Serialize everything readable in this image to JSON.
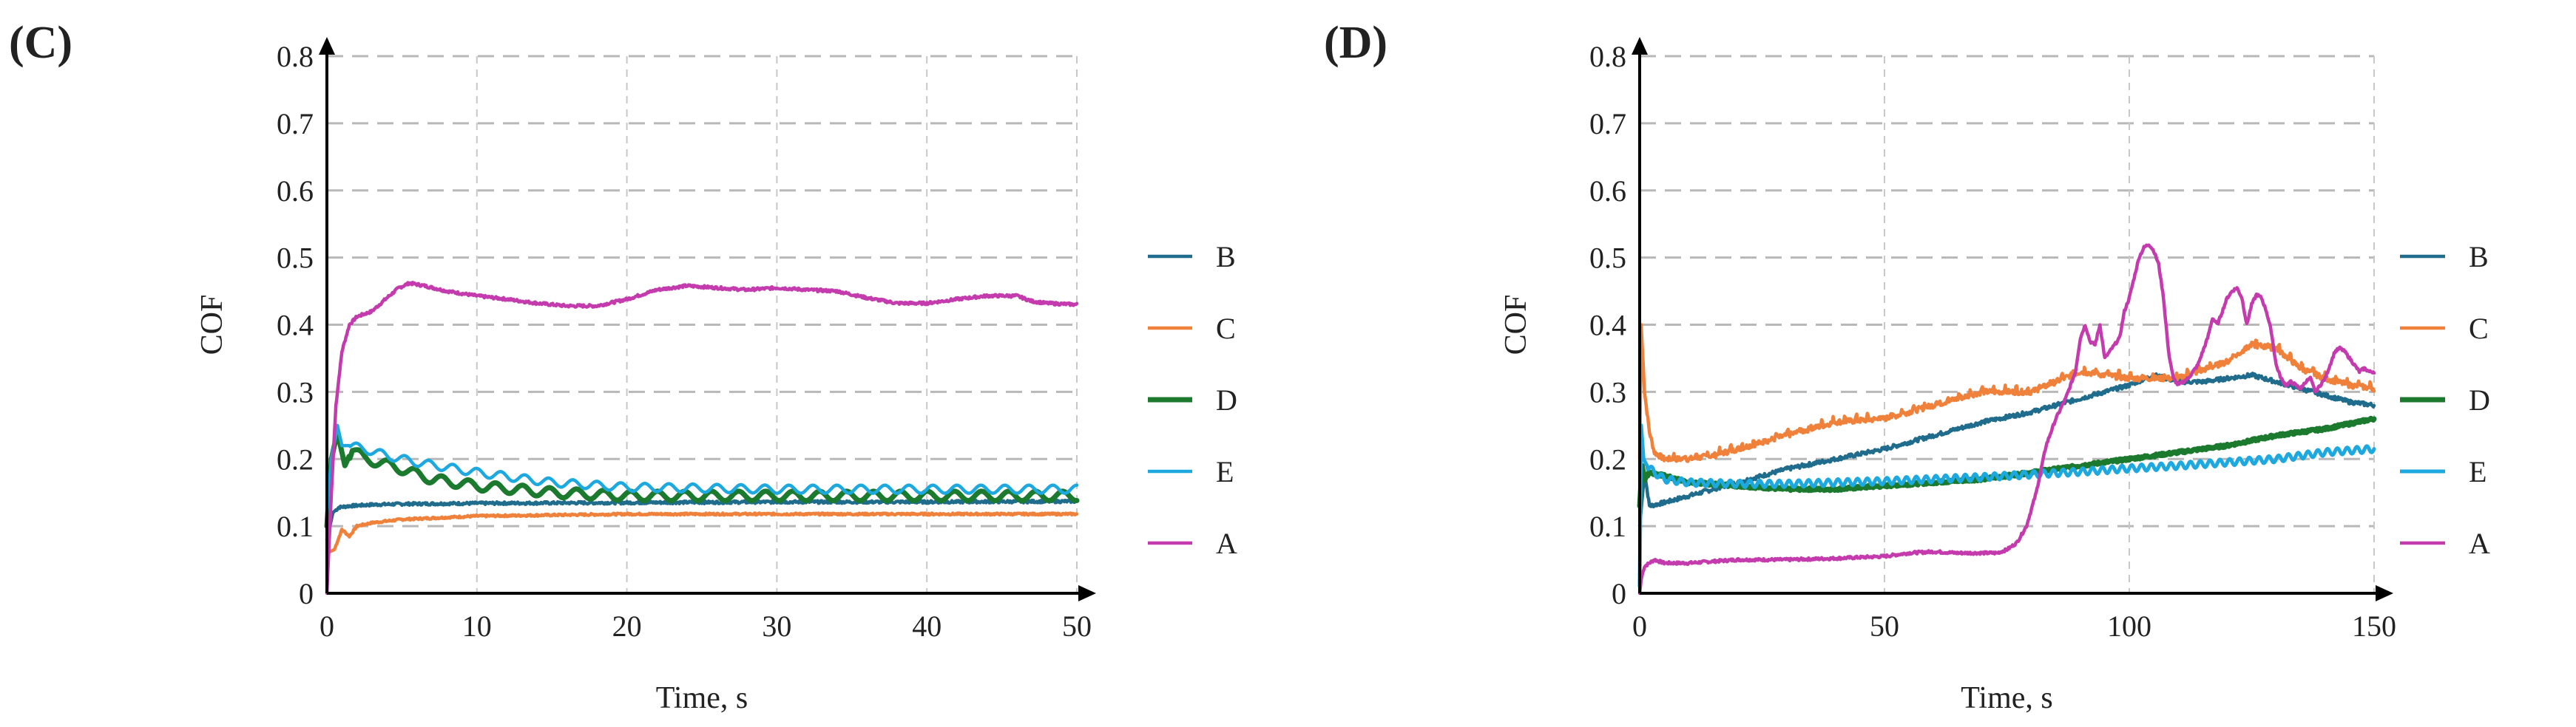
{
  "chart_data": [
    {
      "panel_label": "(C)",
      "type": "line",
      "xlabel": "Time, s",
      "ylabel": "COF",
      "xlim": [
        0,
        50
      ],
      "ylim": [
        0,
        0.8
      ],
      "x_ticks": [
        0,
        10,
        20,
        30,
        40,
        50
      ],
      "x_tick_labels": [
        "0",
        "10",
        "20",
        "30",
        "40",
        "50"
      ],
      "y_ticks": [
        0,
        0.1,
        0.2,
        0.3,
        0.4,
        0.5,
        0.6,
        0.7,
        0.8
      ],
      "y_tick_labels": [
        "0",
        "0.1",
        "0.2",
        "0.3",
        "0.4",
        "0.5",
        "0.6",
        "0.7",
        "0.8"
      ],
      "grid": true,
      "legend_position": "right",
      "legend": [
        "B",
        "C",
        "D",
        "E",
        "A"
      ],
      "series": [
        {
          "name": "B",
          "color": "#1F6C8C",
          "width": 4.5,
          "noise": 0.002,
          "x": [
            0,
            0.4,
            0.8,
            1.5,
            3,
            5,
            10,
            20,
            30,
            40,
            50
          ],
          "y": [
            0.08,
            0.12,
            0.128,
            0.13,
            0.132,
            0.133,
            0.134,
            0.135,
            0.136,
            0.136,
            0.137
          ]
        },
        {
          "name": "C",
          "color": "#F0813B",
          "width": 4.5,
          "noise": 0.0015,
          "x": [
            0,
            0.5,
            1,
            1.5,
            2,
            3,
            5,
            10,
            20,
            30,
            40,
            50
          ],
          "y": [
            0.06,
            0.065,
            0.095,
            0.085,
            0.1,
            0.105,
            0.11,
            0.115,
            0.118,
            0.118,
            0.118,
            0.118
          ]
        },
        {
          "name": "D",
          "color": "#1C7A2E",
          "width": 7,
          "osc": 0.007,
          "period": 1.8,
          "x": [
            0,
            0.3,
            0.7,
            1.2,
            1.7,
            2.5,
            3.5,
            5,
            7,
            10,
            15,
            20,
            30,
            40,
            50
          ],
          "y": [
            0.1,
            0.2,
            0.24,
            0.19,
            0.215,
            0.2,
            0.195,
            0.185,
            0.17,
            0.16,
            0.15,
            0.145,
            0.145,
            0.145,
            0.145
          ]
        },
        {
          "name": "E",
          "color": "#1DA9DF",
          "width": 4.5,
          "osc": 0.006,
          "period": 1.6,
          "x": [
            0,
            0.3,
            0.7,
            1,
            1.5,
            2.5,
            4,
            6,
            10,
            15,
            20,
            30,
            40,
            50
          ],
          "y": [
            0.12,
            0.2,
            0.25,
            0.22,
            0.22,
            0.215,
            0.205,
            0.195,
            0.18,
            0.165,
            0.158,
            0.155,
            0.155,
            0.155
          ]
        },
        {
          "name": "A",
          "color": "#C43BAE",
          "width": 4.5,
          "noise": 0.002,
          "x": [
            0,
            0.3,
            0.6,
            1,
            1.5,
            2,
            3,
            4,
            4.8,
            5.5,
            6.5,
            8,
            10,
            12,
            14,
            16,
            18,
            20,
            22,
            24,
            26,
            28,
            30,
            32,
            34,
            36,
            38,
            40,
            42,
            44,
            46,
            47,
            48,
            50
          ],
          "y": [
            0,
            0.15,
            0.28,
            0.36,
            0.4,
            0.412,
            0.42,
            0.44,
            0.455,
            0.462,
            0.458,
            0.45,
            0.443,
            0.438,
            0.432,
            0.428,
            0.428,
            0.438,
            0.452,
            0.458,
            0.455,
            0.452,
            0.455,
            0.452,
            0.45,
            0.44,
            0.432,
            0.432,
            0.438,
            0.443,
            0.443,
            0.435,
            0.432,
            0.43
          ]
        }
      ]
    },
    {
      "panel_label": "(D)",
      "type": "line",
      "xlabel": "Time, s",
      "ylabel": "COF",
      "xlim": [
        0,
        150
      ],
      "ylim": [
        0,
        0.8
      ],
      "x_ticks": [
        0,
        50,
        100,
        150
      ],
      "x_tick_labels": [
        "0",
        "50",
        "100",
        "150"
      ],
      "y_ticks": [
        0,
        0.1,
        0.2,
        0.3,
        0.4,
        0.5,
        0.6,
        0.7,
        0.8
      ],
      "y_tick_labels": [
        "0",
        "0.1",
        "0.2",
        "0.3",
        "0.4",
        "0.5",
        "0.6",
        "0.7",
        "0.8"
      ],
      "grid": true,
      "legend_position": "right",
      "legend": [
        "B",
        "C",
        "D",
        "E",
        "A"
      ],
      "series": [
        {
          "name": "B",
          "color": "#1F6C8C",
          "width": 4.5,
          "noise": 0.003,
          "x": [
            0,
            1,
            2,
            5,
            10,
            20,
            30,
            40,
            50,
            60,
            70,
            80,
            90,
            100,
            105,
            110,
            115,
            120,
            125,
            130,
            135,
            140,
            145,
            150
          ],
          "y": [
            0.1,
            0.18,
            0.13,
            0.135,
            0.145,
            0.165,
            0.185,
            0.2,
            0.215,
            0.235,
            0.255,
            0.27,
            0.29,
            0.31,
            0.325,
            0.315,
            0.315,
            0.32,
            0.325,
            0.315,
            0.305,
            0.295,
            0.285,
            0.28
          ]
        },
        {
          "name": "C",
          "color": "#F0813B",
          "width": 4.5,
          "noise": 0.004,
          "step": true,
          "x": [
            0,
            0.3,
            1,
            2,
            3,
            5,
            10,
            15,
            20,
            30,
            40,
            50,
            60,
            70,
            80,
            90,
            100,
            110,
            120,
            125,
            130,
            135,
            140,
            145,
            150
          ],
          "y": [
            0.2,
            0.4,
            0.3,
            0.24,
            0.21,
            0.2,
            0.2,
            0.205,
            0.215,
            0.235,
            0.255,
            0.26,
            0.28,
            0.3,
            0.3,
            0.33,
            0.32,
            0.32,
            0.345,
            0.37,
            0.365,
            0.335,
            0.32,
            0.31,
            0.305
          ]
        },
        {
          "name": "D",
          "color": "#1C7A2E",
          "width": 7,
          "noise": 0.002,
          "x": [
            0,
            0.5,
            1,
            2,
            5,
            10,
            20,
            30,
            40,
            50,
            60,
            70,
            80,
            90,
            100,
            110,
            120,
            130,
            140,
            150
          ],
          "y": [
            0.13,
            0.19,
            0.17,
            0.18,
            0.175,
            0.165,
            0.16,
            0.155,
            0.155,
            0.16,
            0.165,
            0.17,
            0.18,
            0.19,
            0.2,
            0.21,
            0.22,
            0.235,
            0.245,
            0.26
          ]
        },
        {
          "name": "E",
          "color": "#1DA9DF",
          "width": 5,
          "osc": 0.005,
          "period": 2,
          "x": [
            0,
            0.3,
            0.8,
            1.5,
            3,
            5,
            10,
            20,
            30,
            40,
            50,
            60,
            70,
            80,
            90,
            100,
            110,
            120,
            130,
            140,
            150
          ],
          "y": [
            0.01,
            0.25,
            0.2,
            0.19,
            0.18,
            0.17,
            0.165,
            0.163,
            0.163,
            0.165,
            0.167,
            0.17,
            0.173,
            0.177,
            0.181,
            0.186,
            0.19,
            0.195,
            0.2,
            0.21,
            0.215
          ]
        },
        {
          "name": "A",
          "color": "#C43BAE",
          "width": 4.5,
          "noise": 0.002,
          "x": [
            0,
            0.3,
            0.6,
            1,
            2,
            3,
            5,
            10,
            20,
            30,
            40,
            50,
            55,
            60,
            65,
            70,
            73,
            75,
            77,
            79,
            81,
            83,
            85,
            87,
            89,
            90,
            91,
            92,
            93,
            94,
            95,
            96,
            97,
            98,
            99,
            100,
            101,
            102,
            103,
            104,
            105,
            106,
            107,
            108,
            109,
            110,
            112,
            114,
            116,
            117,
            118,
            119,
            120,
            121,
            122,
            123,
            124,
            125,
            126,
            127,
            128,
            129,
            130,
            131,
            132,
            133,
            134,
            135,
            136,
            137,
            138,
            139,
            140,
            141,
            142,
            143,
            144,
            145,
            146,
            147,
            148,
            149,
            150
          ],
          "y": [
            0,
            0.02,
            0.03,
            0.04,
            0.045,
            0.05,
            0.045,
            0.045,
            0.05,
            0.05,
            0.052,
            0.055,
            0.06,
            0.062,
            0.06,
            0.06,
            0.06,
            0.065,
            0.075,
            0.1,
            0.15,
            0.22,
            0.26,
            0.29,
            0.33,
            0.38,
            0.4,
            0.375,
            0.37,
            0.4,
            0.35,
            0.36,
            0.37,
            0.38,
            0.42,
            0.44,
            0.47,
            0.5,
            0.515,
            0.52,
            0.51,
            0.49,
            0.44,
            0.36,
            0.32,
            0.31,
            0.32,
            0.34,
            0.38,
            0.41,
            0.4,
            0.42,
            0.44,
            0.45,
            0.455,
            0.44,
            0.4,
            0.43,
            0.445,
            0.44,
            0.42,
            0.39,
            0.34,
            0.32,
            0.31,
            0.315,
            0.31,
            0.305,
            0.315,
            0.32,
            0.3,
            0.31,
            0.32,
            0.34,
            0.36,
            0.365,
            0.36,
            0.35,
            0.34,
            0.33,
            0.335,
            0.33,
            0.33
          ]
        }
      ]
    }
  ]
}
